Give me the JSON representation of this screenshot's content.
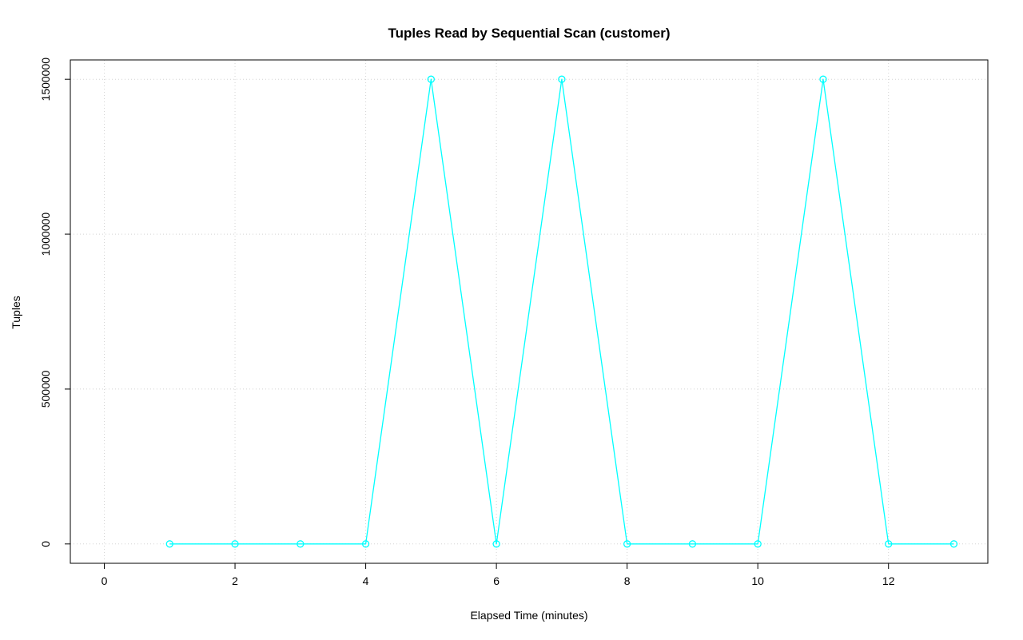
{
  "chart_data": {
    "type": "line",
    "title": "Tuples Read by Sequential Scan (customer)",
    "xlabel": "Elapsed Time (minutes)",
    "ylabel": "Tuples",
    "x": [
      1,
      2,
      3,
      4,
      5,
      6,
      7,
      8,
      9,
      10,
      11,
      12,
      13
    ],
    "y": [
      0,
      0,
      0,
      0,
      1500000,
      0,
      1500000,
      0,
      0,
      0,
      1500000,
      0,
      0
    ],
    "xticks": [
      0,
      2,
      4,
      6,
      8,
      10,
      12
    ],
    "yticks": [
      0,
      500000,
      1000000,
      1500000
    ],
    "xtick_labels": [
      "0",
      "2",
      "4",
      "6",
      "8",
      "10",
      "12"
    ],
    "ytick_labels": [
      "0",
      "500000",
      "1000000",
      "1500000"
    ],
    "xlim": [
      -0.52,
      13.52
    ],
    "ylim": [
      -62400,
      1562400
    ],
    "grid": true,
    "legend": "none",
    "line_color": "#00FFFF",
    "marker": "open-circle",
    "grid_color": "#d3d3d3",
    "box_color": "#000000"
  }
}
